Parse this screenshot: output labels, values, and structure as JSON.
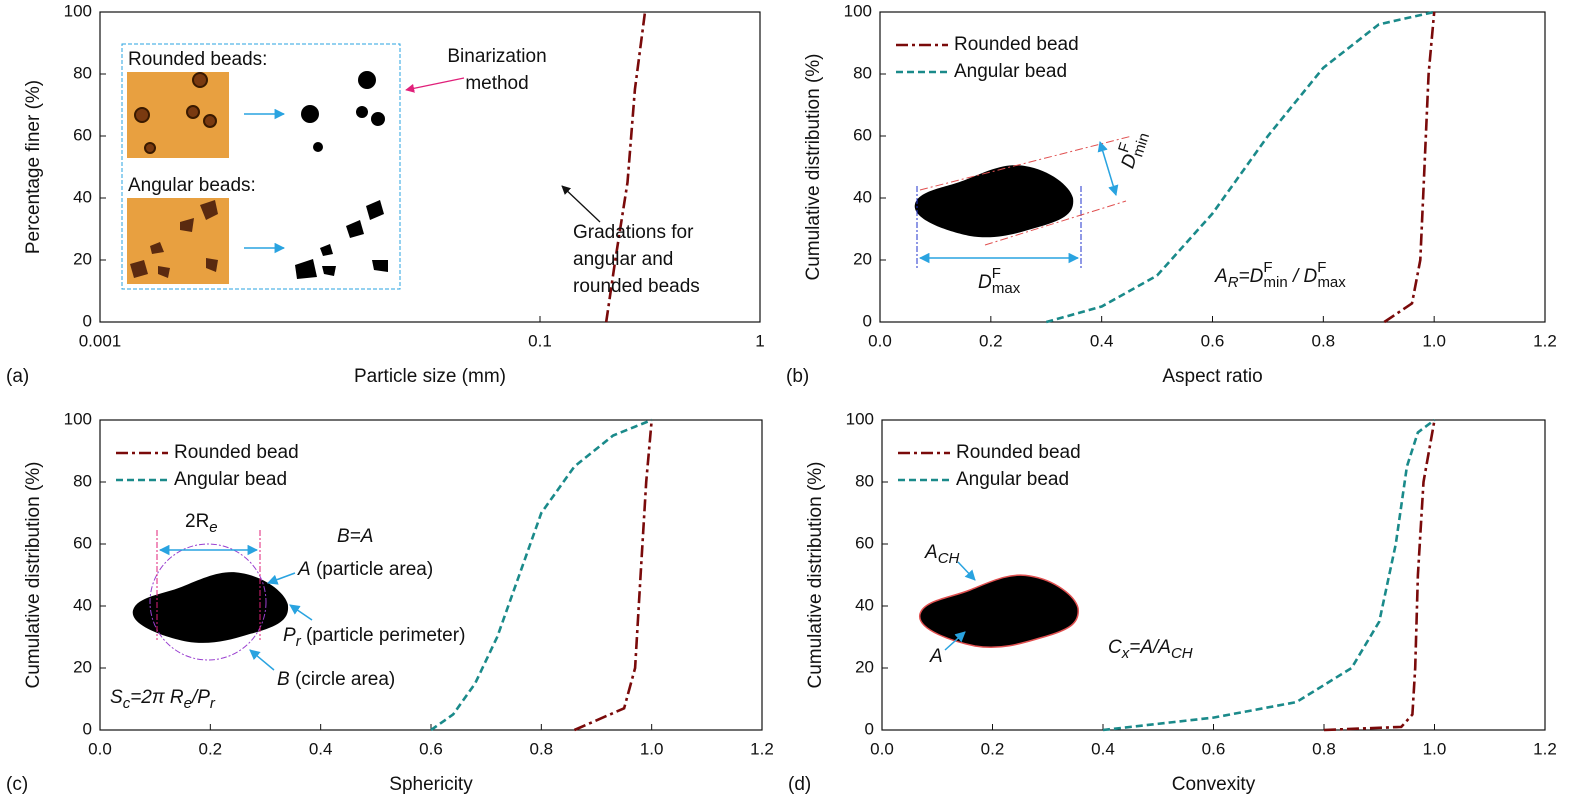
{
  "chart_data": [
    {
      "type": "line",
      "panel": "(a)",
      "xlabel": "Particle size  (mm)",
      "ylabel": "Percentage finer  (%)",
      "xscale": "log",
      "xlim": [
        0.001,
        1
      ],
      "xticks": [
        0.001,
        0.1,
        1
      ],
      "ylim": [
        0,
        100
      ],
      "yticks": [
        0,
        20,
        40,
        60,
        80,
        100
      ],
      "x": [
        0.2,
        0.22,
        0.25,
        0.27,
        0.3
      ],
      "values": [
        0,
        20,
        45,
        75,
        100
      ],
      "color": "#7a0a0a",
      "linestyle": "dashdot",
      "annotations": [
        {
          "parts": [
            "Rounded beads:"
          ]
        },
        {
          "parts": [
            "Angular beads:"
          ]
        },
        {
          "parts": [
            "Binarization",
            "method"
          ]
        },
        {
          "parts": [
            "Gradations for",
            "angular and",
            "rounded beads"
          ]
        }
      ]
    },
    {
      "type": "line",
      "panel": "(b)",
      "xlabel": "Aspect ratio",
      "ylabel": "Cumulative distribution  (%)",
      "xlim": [
        0,
        1.2
      ],
      "xticks": [
        {
          "value": 0,
          "label": "0.0"
        },
        0.2,
        0.4,
        0.6,
        0.8,
        {
          "value": 1,
          "label": "1.0"
        },
        1.2
      ],
      "ylim": [
        0,
        100
      ],
      "yticks": [
        0,
        20,
        40,
        60,
        80,
        100
      ],
      "legend": "upper left",
      "series": [
        {
          "name": "Rounded bead",
          "color": "#7a0a0a",
          "linestyle": "dashdot",
          "x": [
            0.91,
            0.96,
            0.975,
            0.98,
            0.99,
            1.0
          ],
          "values": [
            0,
            6,
            20,
            40,
            80,
            100
          ]
        },
        {
          "name": "Angular bead",
          "color": "#1a8a8a",
          "linestyle": "dashed",
          "x": [
            0.3,
            0.4,
            0.5,
            0.6,
            0.7,
            0.8,
            0.9,
            1.0
          ],
          "values": [
            0,
            5,
            15,
            35,
            60,
            82,
            96,
            100
          ]
        }
      ],
      "annotations": [
        {
          "parts": [
            "D",
            "F",
            "max"
          ]
        },
        {
          "parts": [
            "D",
            "F",
            "min"
          ]
        },
        {
          "parts": [
            "A",
            "R",
            "=D",
            "F",
            "min",
            " / D",
            "F",
            "max"
          ]
        }
      ]
    },
    {
      "type": "line",
      "panel": "(c)",
      "xlabel": "Sphericity",
      "ylabel": "Cumulative distribution  (%)",
      "xlim": [
        0,
        1.2
      ],
      "xticks": [
        {
          "value": 0,
          "label": "0.0"
        },
        0.2,
        0.4,
        0.6,
        0.8,
        {
          "value": 1,
          "label": "1.0"
        },
        1.2
      ],
      "ylim": [
        0,
        100
      ],
      "yticks": [
        0,
        20,
        40,
        60,
        80,
        100
      ],
      "legend": "upper left",
      "series": [
        {
          "name": "Rounded bead",
          "color": "#7a0a0a",
          "linestyle": "dashdot",
          "x": [
            0.86,
            0.95,
            0.97,
            0.98,
            0.99,
            1.0
          ],
          "values": [
            0,
            7,
            20,
            50,
            80,
            100
          ]
        },
        {
          "name": "Angular bead",
          "color": "#1a8a8a",
          "linestyle": "dashed",
          "x": [
            0.6,
            0.64,
            0.68,
            0.72,
            0.76,
            0.8,
            0.86,
            0.93,
            1.0
          ],
          "values": [
            0,
            5,
            15,
            30,
            50,
            70,
            85,
            95,
            100
          ]
        }
      ],
      "annotations": [
        {
          "parts": [
            "2R",
            "e"
          ]
        },
        {
          "parts": [
            "B=A"
          ]
        },
        {
          "parts": [
            "A",
            " (particle area)"
          ]
        },
        {
          "parts": [
            "P",
            "r",
            " (particle perimeter)"
          ]
        },
        {
          "parts": [
            "B",
            " (circle area)"
          ]
        },
        {
          "parts": [
            "S",
            "c",
            "=2π R",
            "e",
            "/P",
            "r"
          ]
        }
      ]
    },
    {
      "type": "line",
      "panel": "(d)",
      "xlabel": "Convexity",
      "ylabel": "Cumulative distribution  (%)",
      "xlim": [
        0,
        1.2
      ],
      "xticks": [
        {
          "value": 0,
          "label": "0.0"
        },
        0.2,
        0.4,
        0.6,
        0.8,
        {
          "value": 1,
          "label": "1.0"
        },
        1.2
      ],
      "ylim": [
        0,
        100
      ],
      "yticks": [
        0,
        20,
        40,
        60,
        80,
        100
      ],
      "legend": "upper left",
      "series": [
        {
          "name": "Rounded bead",
          "color": "#7a0a0a",
          "linestyle": "dashdot",
          "x": [
            0.8,
            0.94,
            0.96,
            0.965,
            0.97,
            0.98,
            1.0
          ],
          "values": [
            0,
            1,
            5,
            20,
            50,
            80,
            100
          ]
        },
        {
          "name": "Angular bead",
          "color": "#1a8a8a",
          "linestyle": "dashed",
          "x": [
            0.4,
            0.6,
            0.75,
            0.85,
            0.9,
            0.93,
            0.95,
            0.97,
            1.0
          ],
          "values": [
            0,
            4,
            9,
            20,
            35,
            60,
            85,
            96,
            100
          ]
        }
      ],
      "annotations": [
        {
          "parts": [
            "A",
            "CH"
          ]
        },
        {
          "parts": [
            "A"
          ]
        },
        {
          "parts": [
            "C",
            "x",
            "=A/A",
            "CH"
          ]
        }
      ]
    }
  ]
}
